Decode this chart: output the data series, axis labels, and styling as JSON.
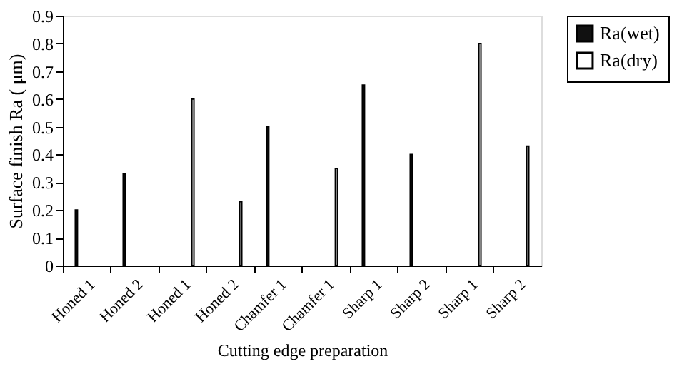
{
  "chart_data": {
    "type": "bar",
    "xlabel": "Cutting edge preparation",
    "ylabel": "Surface finish Ra  ( μm)",
    "categories": [
      "Honed 1",
      "Honed 2",
      "Honed 1",
      "Honed 2",
      "Chamfer 1",
      "Chamfer 1",
      "Sharp 1",
      "Sharp 2",
      "Sharp 1",
      "Sharp 2"
    ],
    "series": [
      {
        "name": "Ra(wet)",
        "color": "#111111",
        "values": [
          0.2,
          0.33,
          null,
          null,
          0.5,
          null,
          0.65,
          0.4,
          null,
          null
        ]
      },
      {
        "name": "Ra(dry)",
        "color": "#ffffff",
        "values": [
          null,
          null,
          0.6,
          0.23,
          null,
          0.35,
          null,
          null,
          0.8,
          0.43
        ]
      }
    ],
    "ylim": [
      0,
      0.9
    ],
    "yticks": [
      0,
      0.1,
      0.2,
      0.3,
      0.4,
      0.5,
      0.6,
      0.7,
      0.8,
      0.9
    ],
    "grid": false,
    "legend": "right"
  }
}
